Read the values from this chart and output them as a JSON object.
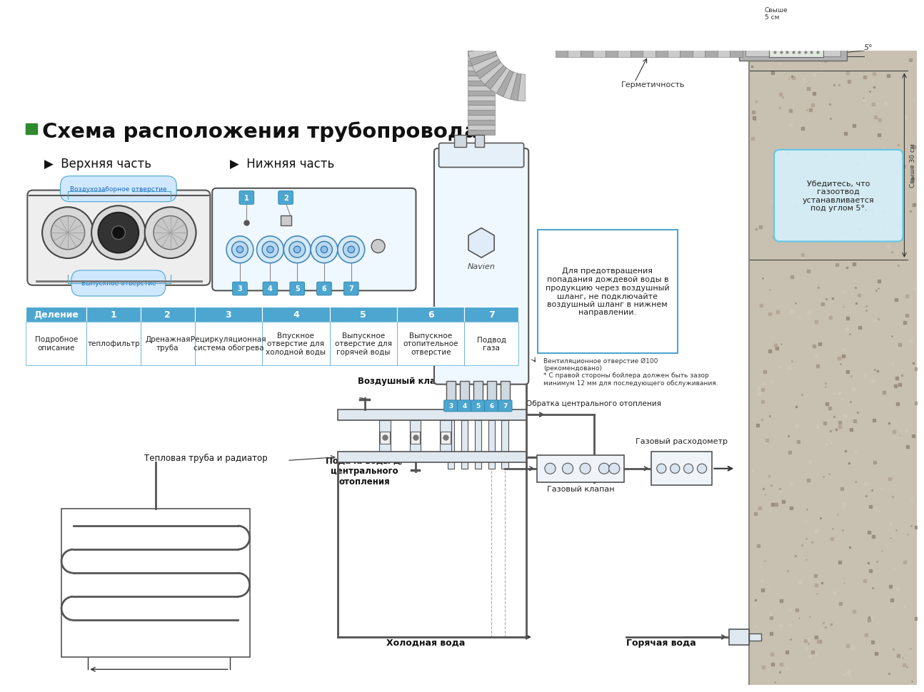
{
  "title": "Схема расположения трубопровода",
  "title_bullet_color": "#2d8a2d",
  "bg_color": "#ffffff",
  "table_header_bg": "#4da6d0",
  "table_header_text": "#ffffff",
  "table_border": "#4da6d0",
  "table_columns": [
    "Деление",
    "1",
    "2",
    "3",
    "4",
    "5",
    "6",
    "7"
  ],
  "table_col_widths": [
    90,
    80,
    80,
    100,
    100,
    100,
    100,
    80
  ],
  "table_descriptions": [
    "Подробное\nописание",
    "теплофильтр",
    "Дренажная\nтруба",
    "Рециркуляционная\nсистема обогрева",
    "Впускное\nотверстие для\nхолодной воды",
    "Выпускное\nотверстие для\nгорячей воды",
    "Выпускное\nотопительное\nотверстие",
    "Подвод\nгаза"
  ],
  "warning_box_text": "Для предотвращения\nпопадания дождевой воды в\nпродукцию через воздушный\nшланг, не подключайте\nвоздушный шланг в нижнем\nнаправлении.",
  "bubble_text": "Убедитесь, что\nгазоотвод\nустанавливается\nпод углом 5°.",
  "vozdushny_klapan": "Воздушный клапан",
  "obratka": "Обратка центрального отопления",
  "teplovaya_truba": "Тепловая труба и радиатор",
  "podacha_vody": "Подача воды д/\nцентрального\nотопления",
  "holodnaya_voda": "Холодная вода",
  "goryachaya_voda": "Горячая вода",
  "gazovy_rashodo": "Газовый расходометр",
  "gazovy_klapan": "Газовый клапан",
  "germetichnost": "Герметичность",
  "svyshe5": "Свыше\n5 см",
  "svyshe30": "Свыше 30 см",
  "vent_otv": "Вентиляционное отверстие Ø100\n(рекомендовано)\n* С правой стороны бойлера должен быть зазор\nминимум 12 мм для последующего обслуживания.",
  "vozdushnoe_top": "Воздухозаборное отверстие",
  "vozdushnoe_bot": "Выпускное отверстие",
  "subtitle_top": "▶  Верхняя часть",
  "subtitle_bot": "▶  Нижняя часть"
}
